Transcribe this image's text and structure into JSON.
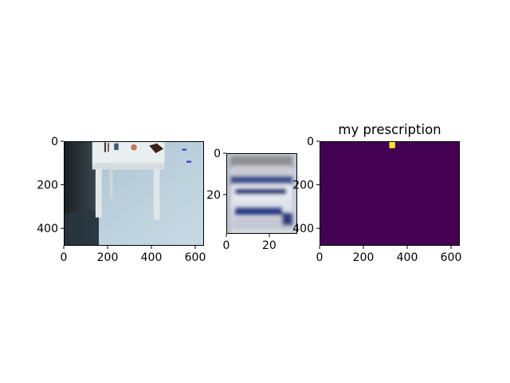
{
  "chart_data": [
    {
      "type": "image",
      "content": "photo of a white side table on a light blue tiled floor with small items on the table top",
      "title": "",
      "x_extent": [
        0,
        640
      ],
      "y_extent": [
        0,
        480
      ],
      "x_ticks": [
        "0",
        "200",
        "400",
        "600"
      ],
      "y_ticks": [
        "0",
        "200",
        "400"
      ]
    },
    {
      "type": "image",
      "content": "blurry crop of a white medicine bottle with blue label",
      "title": "",
      "x_extent": [
        0,
        33
      ],
      "y_extent": [
        0,
        39
      ],
      "x_ticks": [
        "0",
        "20"
      ],
      "y_ticks": [
        "0",
        "20"
      ]
    },
    {
      "type": "heatmap",
      "content": "binary mask, mostly background with a small foreground blob near the top center",
      "title": "my prescription",
      "x_extent": [
        0,
        640
      ],
      "y_extent": [
        0,
        480
      ],
      "x_ticks": [
        "0",
        "200",
        "400",
        "600"
      ],
      "y_ticks": [
        "0",
        "200",
        "400"
      ],
      "colormap": "viridis",
      "background_color": "#440154",
      "foreground_color": "#fde725",
      "mask_region": {
        "x": [
          318,
          345
        ],
        "y": [
          0,
          32
        ]
      }
    }
  ]
}
